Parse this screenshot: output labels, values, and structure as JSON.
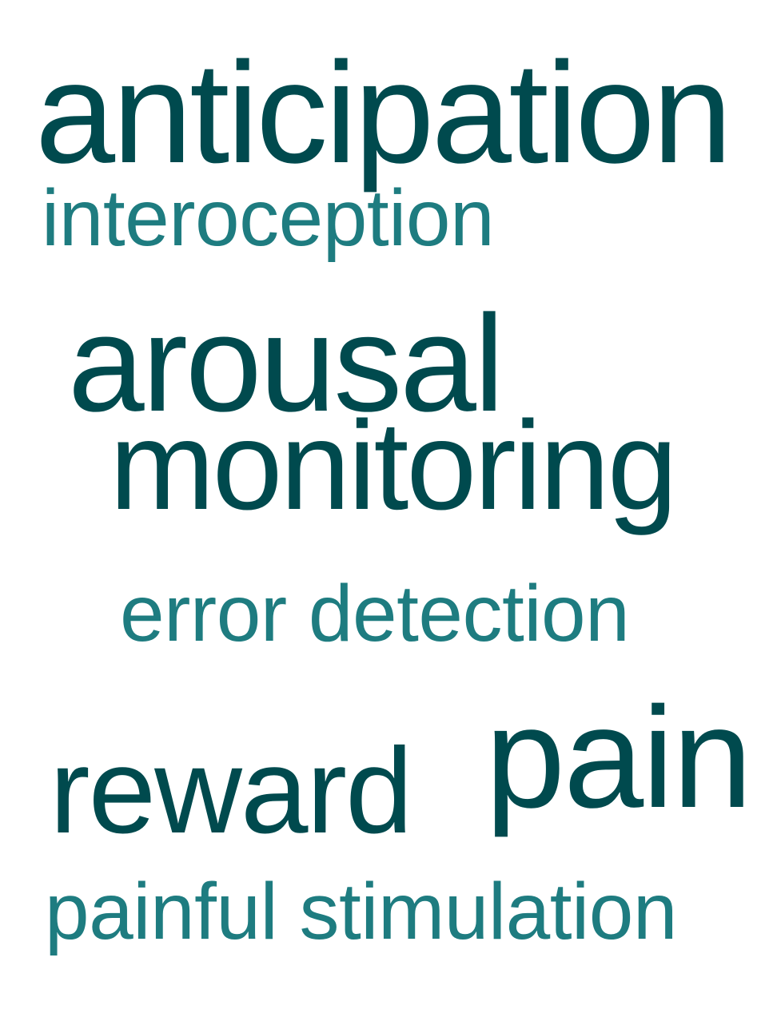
{
  "cloud": {
    "colors": {
      "dark": "#004a4e",
      "light": "#1e7c80",
      "background": "#ffffff"
    },
    "words": [
      {
        "text": "anticipation",
        "tone": "dark"
      },
      {
        "text": "interoception",
        "tone": "light"
      },
      {
        "text": "arousal",
        "tone": "dark"
      },
      {
        "text": "monitoring",
        "tone": "dark"
      },
      {
        "text": "error detection",
        "tone": "light"
      },
      {
        "text": "reward",
        "tone": "dark"
      },
      {
        "text": "pain",
        "tone": "dark"
      },
      {
        "text": "painful stimulation",
        "tone": "light"
      }
    ]
  }
}
